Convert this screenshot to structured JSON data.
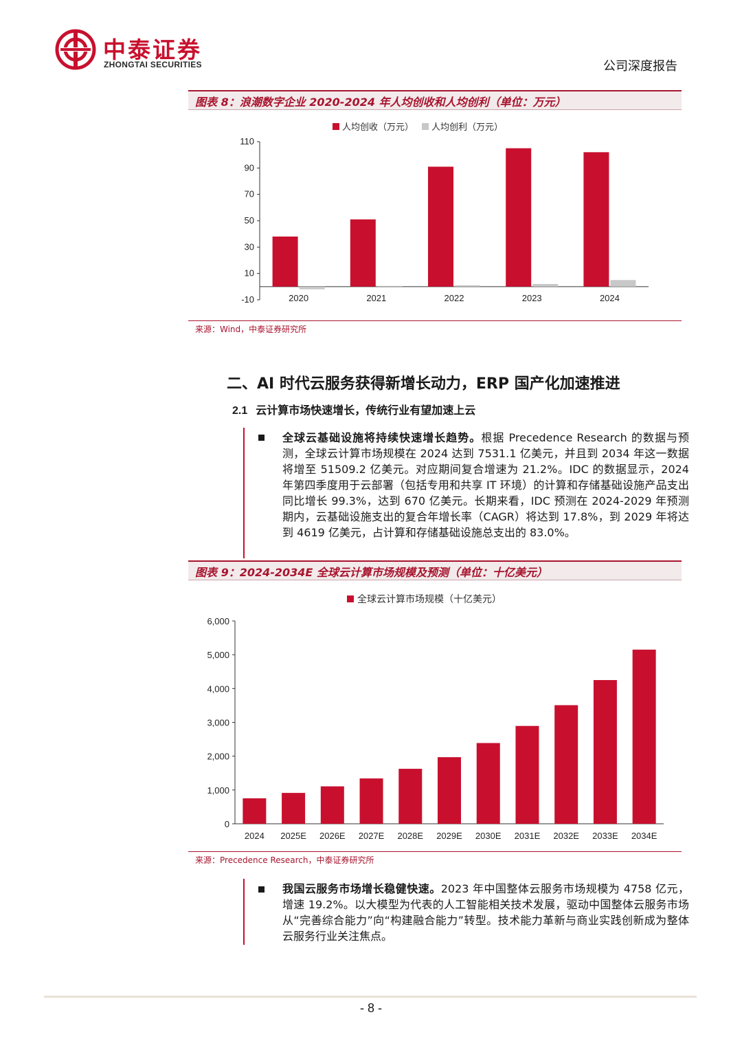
{
  "header": {
    "company_cn": "中泰证券",
    "company_en": "ZHONGTAI SECURITIES",
    "report_type": "公司深度报告"
  },
  "figure8": {
    "caption": "图表 8：浪潮数字企业 2020-2024 年人均创收和人均创利（单位：万元）",
    "source": "来源：Wind，中泰证券研究所"
  },
  "figure9": {
    "caption": "图表 9：2024-2034E 全球云计算市场规模及预测（单位：十亿美元）",
    "source": "来源：Precedence Research，中泰证券研究所"
  },
  "section": {
    "heading": "二、AI 时代云服务获得新增长动力，ERP 国产化加速推进",
    "sub_number": "2.1",
    "sub_title": "云计算市场快速增长，传统行业有望加速上云"
  },
  "paragraphs": {
    "p1_bold": "全球云基础设施将持续快速增长趋势。",
    "p1_text": "根据 Precedence Research 的数据与预测，全球云计算市场规模在 2024 达到 7531.1 亿美元，并且到 2034 年这一数据将增至 51509.2 亿美元。对应期间复合增速为 21.2%。IDC 的数据显示，2024 年第四季度用于云部署（包括专用和共享 IT 环境）的计算和存储基础设施产品支出同比增长 99.3%，达到 670 亿美元。长期来看，IDC 预测在 2024-2029 年预测期内，云基础设施支出的复合年增长率（CAGR）将达到 17.8%，到 2029 年将达到 4619 亿美元，占计算和存储基础设施总支出的 83.0%。",
    "p2_bold": "我国云服务市场增长稳健快速。",
    "p2_text": "2023 年中国整体云服务市场规模为 4758 亿元，增速 19.2%。以大模型为代表的人工智能相关技术发展，驱动中国整体云服务市场从“完善综合能力”向“构建融合能力”转型。技术能力革新与商业实践创新成为整体云服务行业关注焦点。"
  },
  "footer": {
    "page": "- 8 -"
  },
  "colors": {
    "brand_red": "#c8102e",
    "bar_gray": "#c8c8c8"
  },
  "chart_data": [
    {
      "type": "bar",
      "categories": [
        "2020",
        "2021",
        "2022",
        "2023",
        "2024"
      ],
      "series": [
        {
          "name": "人均创收（万元）",
          "values": [
            38,
            51,
            91,
            105,
            102
          ]
        },
        {
          "name": "人均创利（万元）",
          "values": [
            -2,
            0,
            1,
            2,
            5
          ]
        }
      ],
      "ylim": [
        -10,
        110
      ],
      "yticks": [
        -10,
        10,
        30,
        50,
        70,
        90,
        110
      ],
      "legend": "top"
    },
    {
      "type": "bar",
      "categories": [
        "2024",
        "2025E",
        "2026E",
        "2027E",
        "2028E",
        "2029E",
        "2030E",
        "2031E",
        "2032E",
        "2033E",
        "2034E"
      ],
      "series": [
        {
          "name": "全球云计算市场规模（十亿美元）",
          "values": [
            753,
            913,
            1107,
            1341,
            1626,
            1970,
            2388,
            2894,
            3508,
            4251,
            5151
          ]
        }
      ],
      "ylim": [
        0,
        6000
      ],
      "yticks": [
        "0",
        "1,000",
        "2,000",
        "3,000",
        "4,000",
        "5,000",
        "6,000"
      ],
      "legend": "top"
    }
  ]
}
